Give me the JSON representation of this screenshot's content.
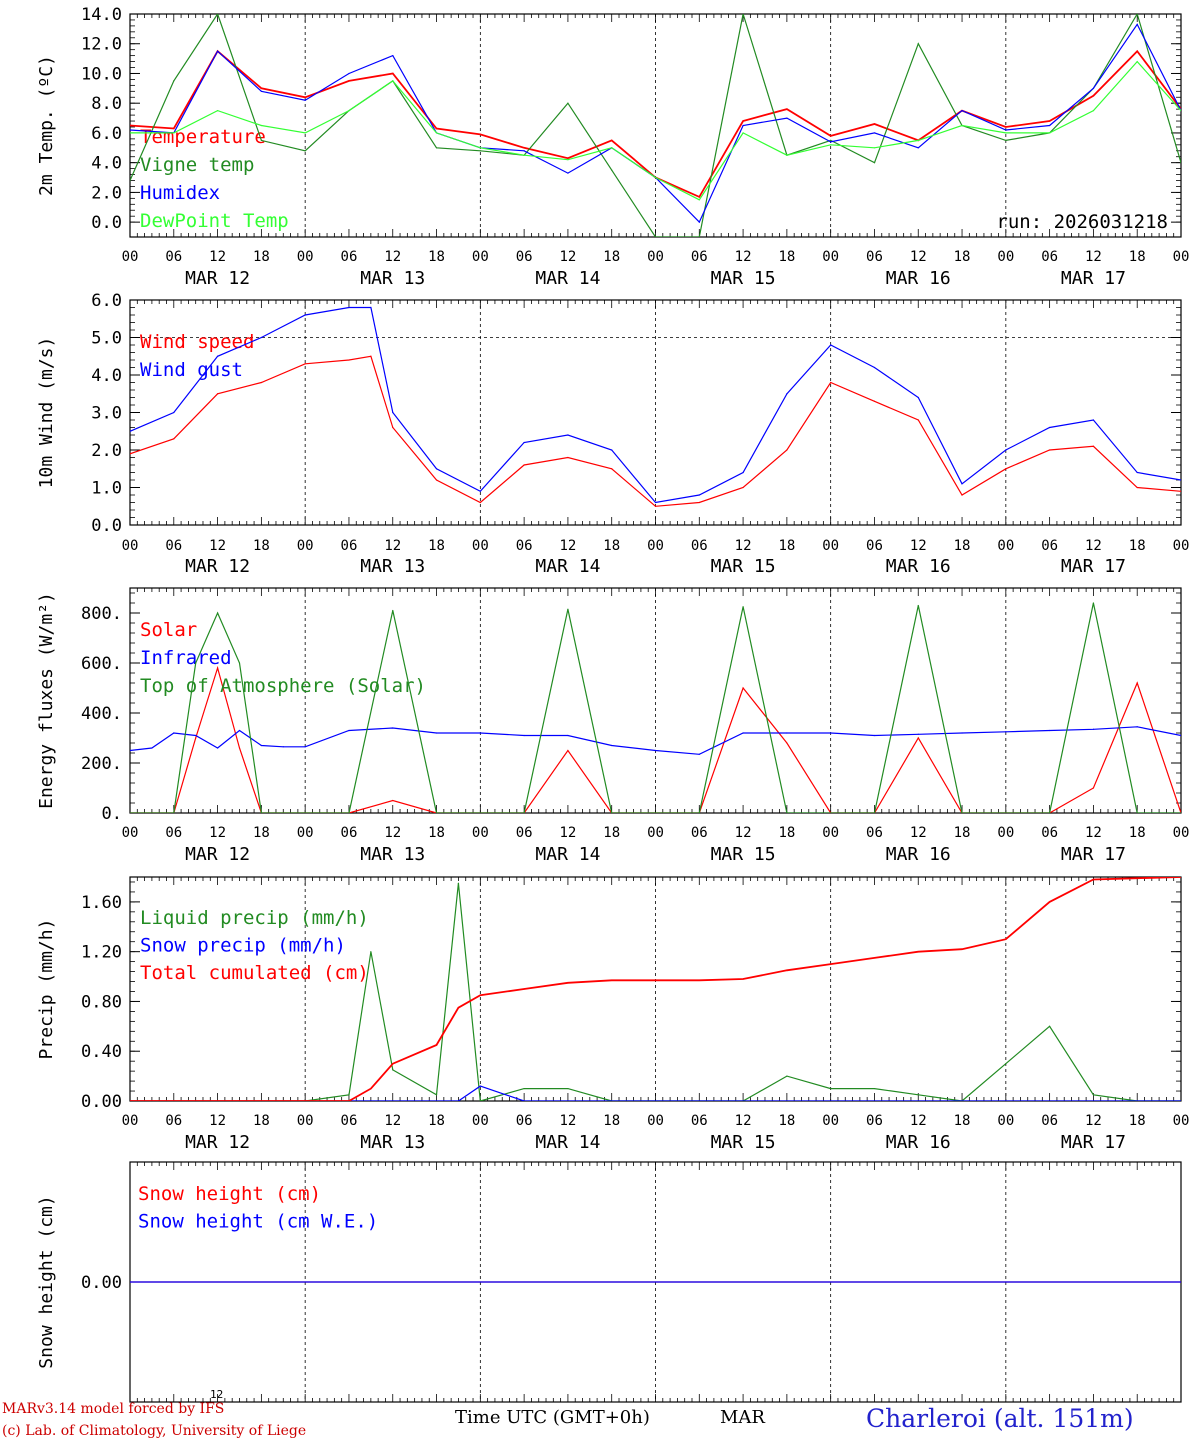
{
  "colors": {
    "temperature": "#ff0000",
    "vigne": "#228b22",
    "humidex": "#0000ff",
    "dewpoint": "#33ff33",
    "wind_speed": "#ff0000",
    "wind_gust": "#0000ff",
    "solar": "#ff0000",
    "infrared": "#0000ff",
    "toa": "#228b22",
    "liquid": "#228b22",
    "snow_precip": "#0000ff",
    "cumulated": "#ff0000",
    "snow_h": "#ff0000",
    "snow_we": "#0000ff"
  },
  "footer": {
    "line1": "MARv3.14 model forced by IFS",
    "line2": "(c) Lab. of Climatology, University of Liege",
    "small12": "12",
    "time_label": "Time UTC (GMT+0h)",
    "month": "MAR",
    "place": "Charleroi (alt. 151m)"
  },
  "chart_data": [
    {
      "type": "line",
      "ylabel": "2m Temp. (ºC)",
      "ylim": [
        -1,
        14
      ],
      "ytick_labels": [
        "0.0",
        "2.0",
        "4.0",
        "6.0",
        "8.0",
        "10.0",
        "12.0",
        "14.0"
      ],
      "hours_ticks": [
        "00",
        "06",
        "12",
        "18",
        "00",
        "06",
        "12",
        "18",
        "00",
        "06",
        "12",
        "18",
        "00",
        "06",
        "12",
        "18",
        "00",
        "06",
        "12",
        "18",
        "00",
        "06",
        "12",
        "18",
        "00"
      ],
      "days": [
        "MAR 12",
        "MAR 13",
        "MAR 14",
        "MAR 15",
        "MAR 16",
        "MAR 17"
      ],
      "annotation": "run: 2026031218",
      "x_hours": [
        0,
        6,
        12,
        18,
        24,
        30,
        36,
        42,
        48,
        54,
        60,
        66,
        72,
        78,
        84,
        90,
        96,
        102,
        108,
        114,
        120,
        126,
        132,
        138,
        144
      ],
      "series": [
        {
          "name": "Temperature",
          "key": "temperature",
          "values": [
            6.5,
            6.3,
            11.5,
            9.0,
            8.4,
            9.5,
            10.0,
            6.3,
            5.9,
            5.0,
            4.3,
            5.5,
            3.0,
            1.7,
            6.8,
            7.6,
            5.8,
            6.6,
            5.5,
            7.5,
            6.4,
            6.8,
            8.5,
            11.5,
            7.6
          ]
        },
        {
          "name": "Vigne temp",
          "key": "vigne",
          "values": [
            2.8,
            9.5,
            14.0,
            5.5,
            4.8,
            7.5,
            9.5,
            5.0,
            4.8,
            4.5,
            8.0,
            3.5,
            -1.0,
            -1.0,
            14.0,
            4.5,
            5.5,
            4.0,
            12.0,
            6.5,
            5.5,
            6.0,
            9.0,
            14.0,
            4.0
          ]
        },
        {
          "name": "Humidex",
          "key": "humidex",
          "values": [
            6.2,
            6.0,
            11.5,
            8.8,
            8.2,
            10.0,
            11.2,
            6.0,
            5.0,
            4.8,
            3.3,
            5.0,
            3.0,
            0.0,
            6.5,
            7.0,
            5.4,
            6.0,
            5.0,
            7.5,
            6.2,
            6.5,
            9.0,
            13.3,
            7.5
          ]
        },
        {
          "name": "DewPoint Temp",
          "key": "dewpoint",
          "values": [
            6.0,
            6.0,
            7.5,
            6.5,
            6.0,
            7.5,
            9.5,
            6.0,
            5.0,
            4.5,
            4.2,
            5.0,
            3.0,
            1.5,
            6.0,
            4.5,
            5.2,
            5.0,
            5.5,
            6.5,
            6.0,
            6.0,
            7.5,
            10.8,
            7.5
          ]
        }
      ]
    },
    {
      "type": "line",
      "ylabel": "10m Wind (m/s)",
      "ylim": [
        0,
        6
      ],
      "ytick_labels": [
        "0.0",
        "1.0",
        "2.0",
        "3.0",
        "4.0",
        "5.0",
        "6.0"
      ],
      "hours_ticks": [
        "00",
        "06",
        "12",
        "18",
        "00",
        "06",
        "12",
        "18",
        "00",
        "06",
        "12",
        "18",
        "00",
        "06",
        "12",
        "18",
        "00",
        "06",
        "12",
        "18",
        "00",
        "06",
        "12",
        "18",
        "00"
      ],
      "days": [
        "MAR 12",
        "MAR 13",
        "MAR 14",
        "MAR 15",
        "MAR 16",
        "MAR 17"
      ],
      "x_hours": [
        0,
        6,
        12,
        18,
        24,
        30,
        33,
        36,
        42,
        48,
        54,
        60,
        66,
        72,
        78,
        84,
        90,
        96,
        102,
        108,
        114,
        120,
        126,
        132,
        138,
        144
      ],
      "series": [
        {
          "name": "Wind speed",
          "key": "wind_speed",
          "values": [
            1.9,
            2.3,
            3.5,
            3.8,
            4.3,
            4.4,
            4.5,
            2.6,
            1.2,
            0.6,
            1.6,
            1.8,
            1.5,
            0.5,
            0.6,
            1.0,
            2.0,
            3.8,
            3.3,
            2.8,
            0.8,
            1.5,
            2.0,
            2.1,
            1.0,
            0.9
          ]
        },
        {
          "name": "Wind gust",
          "key": "wind_gust",
          "values": [
            2.5,
            3.0,
            4.5,
            5.0,
            5.6,
            5.8,
            5.8,
            3.0,
            1.5,
            0.9,
            2.2,
            2.4,
            2.0,
            0.6,
            0.8,
            1.4,
            3.5,
            4.8,
            4.2,
            3.4,
            1.1,
            2.0,
            2.6,
            2.8,
            1.4,
            1.2
          ]
        }
      ]
    },
    {
      "type": "line",
      "ylabel": "Energy fluxes (W/m²)",
      "ylim": [
        0,
        900
      ],
      "ytick_labels": [
        "0.",
        "200.",
        "400.",
        "600.",
        "800."
      ],
      "hours_ticks": [
        "00",
        "06",
        "12",
        "18",
        "00",
        "06",
        "12",
        "18",
        "00",
        "06",
        "12",
        "18",
        "00",
        "06",
        "12",
        "18",
        "00",
        "06",
        "12",
        "18",
        "00",
        "06",
        "12",
        "18",
        "00"
      ],
      "days": [
        "MAR 12",
        "MAR 13",
        "MAR 14",
        "MAR 15",
        "MAR 16",
        "MAR 17"
      ],
      "x_hours": [
        0,
        3,
        6,
        9,
        12,
        15,
        18,
        21,
        24,
        30,
        36,
        42,
        48,
        54,
        60,
        66,
        72,
        78,
        84,
        90,
        96,
        102,
        108,
        114,
        120,
        126,
        132,
        138,
        144
      ],
      "series": [
        {
          "name": "Solar",
          "key": "solar",
          "values": [
            0,
            0,
            0,
            300,
            580,
            260,
            0,
            0,
            0,
            0,
            50,
            0,
            0,
            0,
            250,
            0,
            0,
            0,
            500,
            280,
            0,
            0,
            300,
            0,
            0,
            0,
            100,
            520,
            0
          ]
        },
        {
          "name": "Infrared",
          "key": "infrared",
          "values": [
            250,
            260,
            320,
            310,
            260,
            330,
            270,
            265,
            265,
            330,
            340,
            320,
            320,
            310,
            310,
            270,
            250,
            235,
            320,
            320,
            320,
            310,
            315,
            320,
            325,
            330,
            335,
            345,
            310
          ]
        },
        {
          "name": "Top of Atmosphere (Solar)",
          "key": "toa",
          "values": [
            0,
            0,
            0,
            600,
            800,
            600,
            0,
            0,
            0,
            0,
            810,
            0,
            0,
            0,
            815,
            0,
            0,
            0,
            825,
            0,
            0,
            0,
            830,
            0,
            0,
            0,
            840,
            0,
            0
          ]
        }
      ]
    },
    {
      "type": "line",
      "ylabel": "Precip (mm/h)",
      "ylim": [
        0,
        1.8
      ],
      "ytick_labels": [
        "0.00",
        "0.40",
        "0.80",
        "1.20",
        "1.60"
      ],
      "hours_ticks": [
        "00",
        "06",
        "12",
        "18",
        "00",
        "06",
        "12",
        "18",
        "00",
        "06",
        "12",
        "18",
        "00",
        "06",
        "12",
        "18",
        "00",
        "06",
        "12",
        "18",
        "00",
        "06",
        "12",
        "18",
        "00"
      ],
      "days": [
        "MAR 12",
        "MAR 13",
        "MAR 14",
        "MAR 15",
        "MAR 16",
        "MAR 17"
      ],
      "x_hours": [
        0,
        6,
        12,
        18,
        24,
        30,
        33,
        36,
        42,
        45,
        48,
        54,
        60,
        66,
        72,
        78,
        84,
        90,
        96,
        102,
        108,
        114,
        120,
        126,
        132,
        138,
        144
      ],
      "series": [
        {
          "name": "Liquid precip (mm/h)",
          "key": "liquid",
          "values": [
            0,
            0,
            0,
            0,
            0,
            0.05,
            1.2,
            0.25,
            0.05,
            1.75,
            0,
            0.1,
            0.1,
            0,
            0,
            0,
            0,
            0.2,
            0.1,
            0.1,
            0.05,
            0,
            0.3,
            0.6,
            0.05,
            0,
            0
          ]
        },
        {
          "name": "Snow precip (mm/h)",
          "key": "snow_precip",
          "values": [
            0,
            0,
            0,
            0,
            0,
            0,
            0,
            0,
            0,
            0,
            0.12,
            0,
            0,
            0,
            0,
            0,
            0,
            0,
            0,
            0,
            0,
            0,
            0,
            0,
            0,
            0,
            0
          ]
        },
        {
          "name": "Total cumulated (cm)",
          "key": "cumulated",
          "values": [
            0,
            0,
            0,
            0,
            0,
            0,
            0.1,
            0.3,
            0.45,
            0.75,
            0.85,
            0.9,
            0.95,
            0.97,
            0.97,
            0.97,
            0.98,
            1.05,
            1.1,
            1.15,
            1.2,
            1.22,
            1.3,
            1.6,
            1.78,
            1.79,
            1.8
          ]
        }
      ]
    },
    {
      "type": "line",
      "ylabel": "Snow height (cm)",
      "ylim": [
        -1,
        1
      ],
      "ytick_labels": [
        "0.00"
      ],
      "days": [],
      "x_hours": [
        0,
        144
      ],
      "series": [
        {
          "name": "Snow height (cm)",
          "key": "snow_h",
          "values": [
            0,
            0
          ]
        },
        {
          "name": "Snow height (cm W.E.)",
          "key": "snow_we",
          "values": [
            0,
            0
          ]
        }
      ]
    }
  ]
}
